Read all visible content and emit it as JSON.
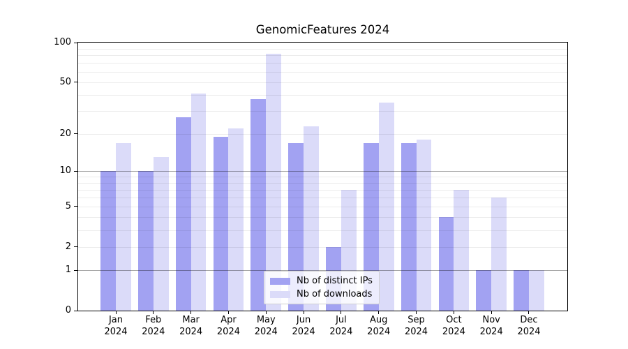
{
  "chart_data": {
    "type": "bar",
    "title": "GenomicFeatures 2024",
    "categories": [
      "Jan",
      "Feb",
      "Mar",
      "Apr",
      "May",
      "Jun",
      "Jul",
      "Aug",
      "Sep",
      "Oct",
      "Nov",
      "Dec"
    ],
    "category_year": "2024",
    "series": [
      {
        "name": "Nb of distinct IPs",
        "color": "#a2a2f2",
        "values": [
          10,
          10,
          27,
          19,
          37,
          17,
          2,
          17,
          17,
          4,
          1,
          1
        ]
      },
      {
        "name": "Nb of downloads",
        "color": "#dbdbf9",
        "values": [
          17,
          13,
          41,
          22,
          82,
          23,
          7,
          35,
          18,
          7,
          6,
          1
        ]
      }
    ],
    "y_ticks": [
      0,
      1,
      2,
      5,
      10,
      20,
      50,
      100
    ],
    "gridlines": {
      "minor": [
        2,
        3,
        4,
        5,
        6,
        7,
        8,
        9,
        20,
        30,
        40,
        50,
        60,
        70,
        80,
        90
      ],
      "major": [
        1,
        10
      ]
    },
    "scale": "log10(1+y)",
    "ylim": [
      0,
      100
    ],
    "grid": "on",
    "legend_position": "lower-center",
    "xlabel": "",
    "ylabel": "",
    "colors": {
      "grid_minor": "rgba(0,0,0,0.075)",
      "grid_major": "rgba(0,0,0,0.35)",
      "spine": "#000000",
      "text": "#000000",
      "background": "#ffffff"
    }
  }
}
